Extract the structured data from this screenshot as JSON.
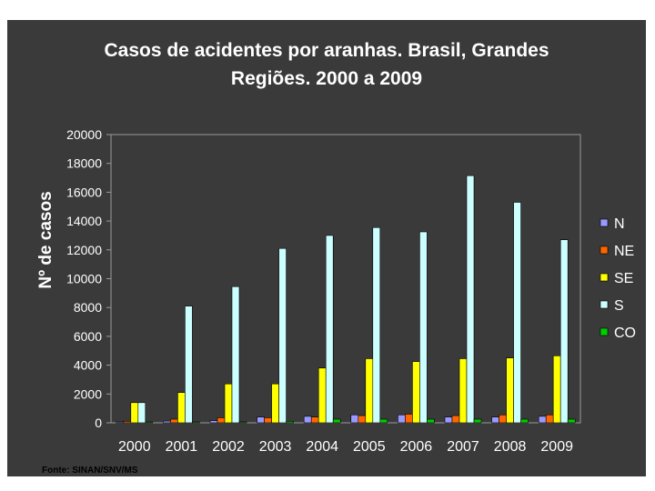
{
  "chart_data": {
    "type": "bar",
    "title_line1": "Casos de acidentes por aranhas. Brasil, Grandes",
    "title_line2": "Regiões. 2000 a 2009",
    "xlabel": "",
    "ylabel": "Nº de casos",
    "ylim": [
      0,
      20000
    ],
    "yticks": [
      0,
      2000,
      4000,
      6000,
      8000,
      10000,
      12000,
      14000,
      16000,
      18000,
      20000
    ],
    "categories": [
      "2000",
      "2001",
      "2002",
      "2003",
      "2004",
      "2005",
      "2006",
      "2007",
      "2008",
      "2009"
    ],
    "legend_position": "right",
    "grid": false,
    "series": [
      {
        "name": "N",
        "color": "#9999ff",
        "values": [
          50,
          120,
          150,
          400,
          450,
          550,
          550,
          400,
          400,
          450
        ]
      },
      {
        "name": "NE",
        "color": "#ff6600",
        "values": [
          100,
          250,
          350,
          350,
          400,
          500,
          600,
          500,
          550,
          550
        ]
      },
      {
        "name": "SE",
        "color": "#ffff00",
        "values": [
          1400,
          2100,
          2700,
          2700,
          3800,
          4450,
          4250,
          4450,
          4500,
          4650
        ]
      },
      {
        "name": "S",
        "color": "#ccffff",
        "values": [
          1400,
          8100,
          9450,
          12100,
          13000,
          13550,
          13250,
          17150,
          15300,
          12700
        ]
      },
      {
        "name": "CO",
        "color": "#00cc00",
        "values": [
          20,
          50,
          60,
          100,
          250,
          250,
          250,
          250,
          250,
          250
        ]
      }
    ]
  },
  "source_text": "Fonte: SINAN/SNV/MS"
}
